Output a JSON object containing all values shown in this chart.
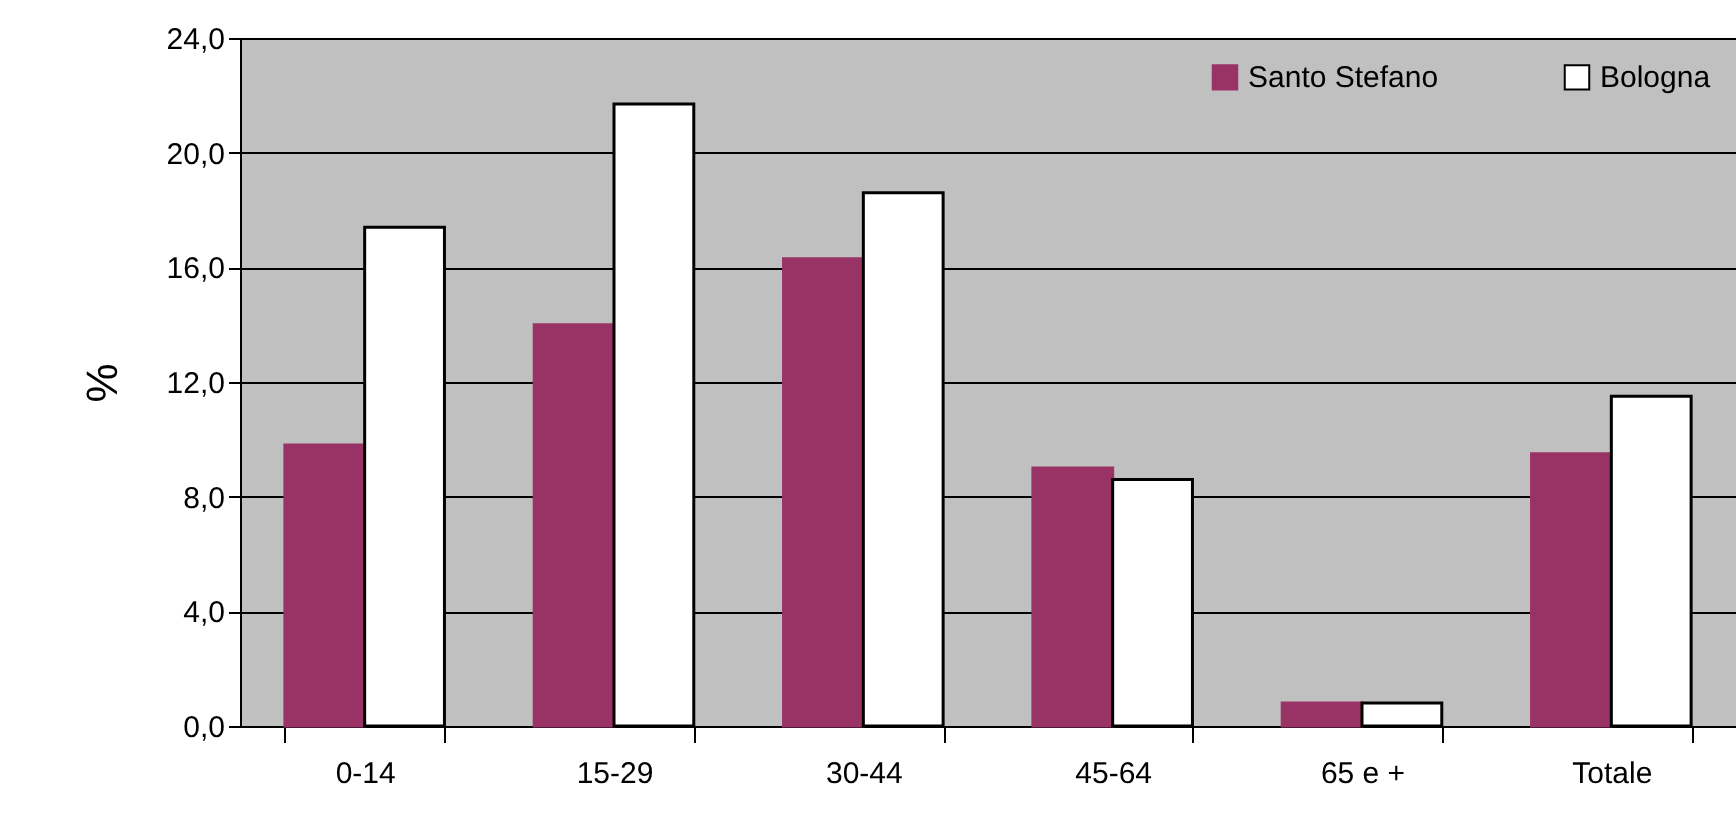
{
  "chart_data": {
    "type": "bar",
    "ylabel": "%",
    "categories": [
      "0-14",
      "15-29",
      "30-44",
      "45-64",
      "65 e +",
      "Totale"
    ],
    "series": [
      {
        "name": "Santo Stefano",
        "color": "#993366",
        "values": [
          9.8,
          14.0,
          16.3,
          9.0,
          0.8,
          9.5
        ]
      },
      {
        "name": "Bologna",
        "color": "#ffffff",
        "values": [
          17.4,
          21.7,
          18.6,
          8.6,
          0.8,
          11.5
        ]
      }
    ],
    "ylim": [
      0,
      24
    ],
    "yticks": [
      {
        "value": 0,
        "label": "0,0"
      },
      {
        "value": 4,
        "label": "4,0"
      },
      {
        "value": 8,
        "label": "8,0"
      },
      {
        "value": 12,
        "label": "12,0"
      },
      {
        "value": 16,
        "label": "16,0"
      },
      {
        "value": 20,
        "label": "20,0"
      },
      {
        "value": 24,
        "label": "24,0"
      }
    ],
    "grid": "y",
    "legend": "top right"
  }
}
